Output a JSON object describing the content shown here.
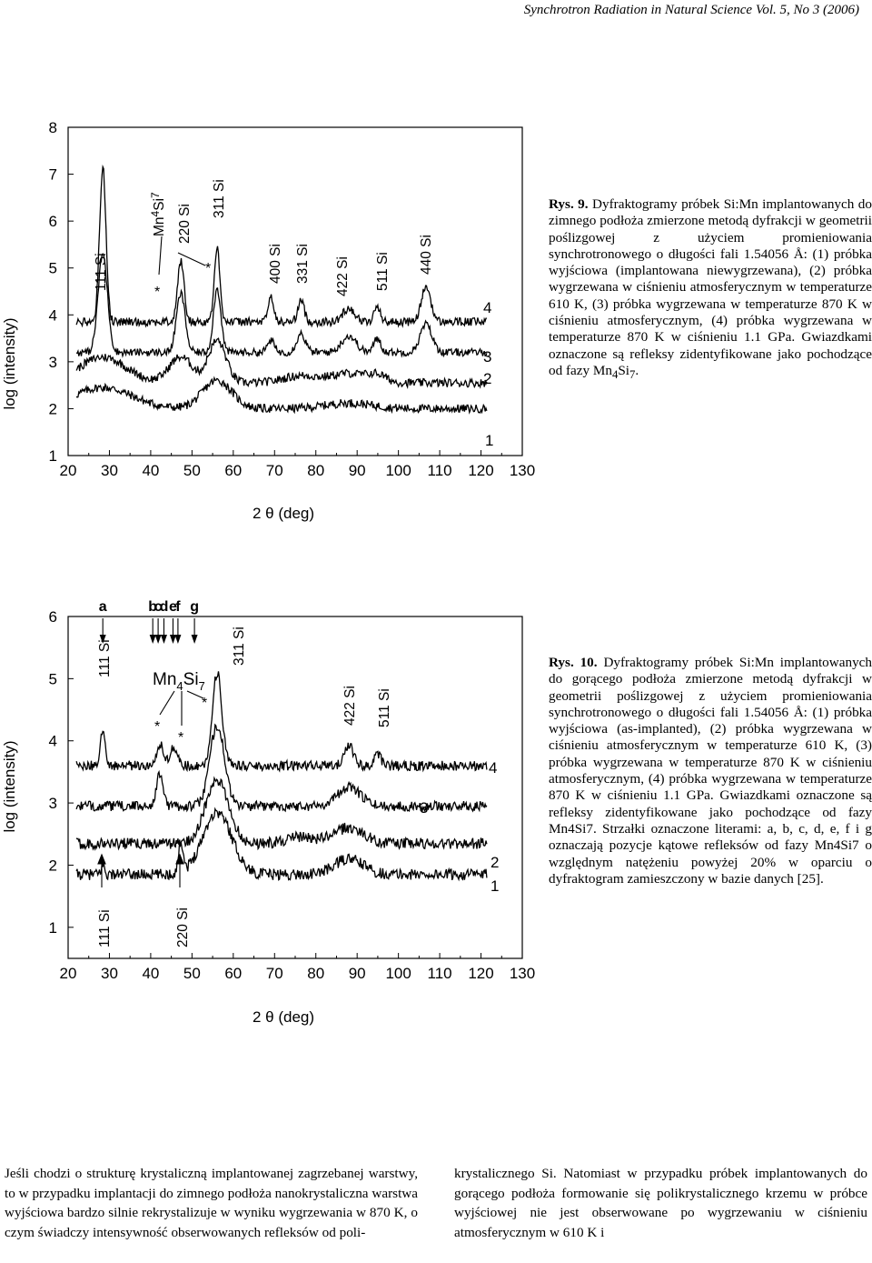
{
  "header": "Synchrotron Radiation in Natural Science Vol. 5, No 3 (2006)",
  "figure9": {
    "caption_label": "Rys. 9.",
    "caption_text": "Dyfraktogramy próbek Si:Mn implantowanych do zimnego podłoża zmierzone metodą dyfrakcji w geometrii poślizgowej z użyciem promieniowania synchrotronowego o długości fali 1.54056 Å: (1) próbka wyjściowa (implantowana niewygrzewana), (2) próbka wygrzewana w ciśnieniu atmosferycznym w temperaturze 610 K, (3) próbka wygrzewana w temperaturze 870 K w ciśnieniu atmosferycznym, (4) próbka wygrzewana w temperaturze 870 K w ciśnieniu 1.1 GPa. Gwiazdkami oznaczone są refleksy zidentyfikowane jako pochodzące od fazy Mn",
    "caption_formula": [
      "4",
      "Si",
      "7",
      "."
    ],
    "chart_data": {
      "type": "line",
      "xlabel": "2 θ (deg)",
      "ylabel": "log (intensity)",
      "xlim": [
        20,
        130
      ],
      "ylim": [
        1,
        8
      ],
      "x_ticks": [
        "20",
        "30",
        "40",
        "50",
        "60",
        "70",
        "80",
        "90",
        "100",
        "110",
        "120",
        "130"
      ],
      "y_ticks": [
        "1",
        "2",
        "3",
        "4",
        "5",
        "6",
        "7",
        "8"
      ],
      "series": [
        {
          "name": "1",
          "baseline": 2.0,
          "noise": 0.09,
          "peaks": [
            [
              28.4,
              0.45,
              10
            ],
            [
              56.1,
              0.6,
              5
            ],
            [
              88,
              0.12,
              8
            ]
          ]
        },
        {
          "name": "2",
          "baseline": 2.55,
          "noise": 0.09,
          "peaks": [
            [
              28.4,
              0.55,
              8
            ],
            [
              47.3,
              0.55,
              4
            ],
            [
              56.1,
              0.9,
              3
            ],
            [
              76.4,
              0.15,
              6
            ],
            [
              88,
              0.2,
              6
            ],
            [
              94.9,
              0.15,
              3
            ]
          ]
        },
        {
          "name": "3",
          "baseline": 3.2,
          "noise": 0.08,
          "peaks": [
            [
              28.4,
              2.1,
              1.6
            ],
            [
              47.3,
              1.25,
              1.5
            ],
            [
              56.1,
              1.35,
              1.3
            ],
            [
              69.1,
              0.25,
              1.2
            ],
            [
              76.4,
              0.4,
              1.5
            ],
            [
              88,
              0.35,
              2.5
            ],
            [
              94.9,
              0.3,
              1.2
            ],
            [
              106.7,
              0.6,
              2
            ]
          ]
        },
        {
          "name": "4",
          "baseline": 3.85,
          "noise": 0.09,
          "peaks": [
            [
              28.4,
              3.3,
              1.1
            ],
            [
              47.3,
              1.3,
              1.1
            ],
            [
              56.1,
              1.55,
              1
            ],
            [
              69.1,
              0.55,
              0.9
            ],
            [
              76.4,
              0.45,
              1.1
            ],
            [
              88,
              0.3,
              2
            ],
            [
              94.9,
              0.35,
              1
            ],
            [
              106.7,
              0.75,
              1.6
            ]
          ]
        }
      ],
      "series_labels": [
        "1",
        "2",
        "3",
        "4"
      ],
      "annotations": [
        "111 Si",
        "Mn",
        "4",
        "Si",
        "7",
        "220 Si",
        "311 Si",
        "400 Si",
        "331 Si",
        "422 Si",
        "511 Si",
        "440 Si",
        "*",
        "*"
      ]
    }
  },
  "figure10": {
    "caption_label": "Rys. 10.",
    "caption_text": "Dyfraktogramy próbek Si:Mn implantowanych do gorącego podłoża zmierzone metodą dyfrakcji w geometrii poślizgowej z użyciem promieniowania synchrotronowego o długości fali 1.54056 Å: (1) próbka wyjściowa (as-implanted), (2) próbka wygrzewana w ciśnieniu atmosferycznym w temperaturze 610 K, (3) próbka wygrzewana w temperaturze 870 K w ciśnieniu atmosferycznym, (4) próbka wygrzewana w temperaturze 870 K w ciśnieniu 1.1 GPa. Gwiazdkami oznaczone są refleksy zidentyfikowane jako pochodzące od fazy Mn4Si7. Strzałki oznaczone literami: a, b, c, d, e, f i g oznaczają pozycje kątowe refleksów od fazy Mn4Si7 o względnym natężeniu powyżej 20% w oparciu o dyfraktogram zamieszczony w bazie danych [25].",
    "chart_data": {
      "type": "line",
      "xlabel": "2 θ (deg)",
      "ylabel": "log (intensity)",
      "xlim": [
        20,
        130
      ],
      "ylim": [
        0.5,
        6
      ],
      "x_ticks": [
        "20",
        "30",
        "40",
        "50",
        "60",
        "70",
        "80",
        "90",
        "100",
        "110",
        "120",
        "130"
      ],
      "y_ticks": [
        "1",
        "2",
        "3",
        "4",
        "5",
        "6"
      ],
      "series": [
        {
          "name": "1",
          "baseline": 1.85,
          "noise": 0.09,
          "peaks": [
            [
              28.4,
              0.15,
              0.6
            ],
            [
              47.3,
              0.5,
              0.8
            ],
            [
              56.1,
              1.0,
              5
            ],
            [
              88,
              0.25,
              5
            ]
          ]
        },
        {
          "name": "2",
          "baseline": 2.35,
          "noise": 0.09,
          "peaks": [
            [
              56.1,
              1.0,
              4
            ],
            [
              76.4,
              0.1,
              5
            ],
            [
              88,
              0.25,
              5
            ]
          ]
        },
        {
          "name": "3",
          "baseline": 2.95,
          "noise": 0.08,
          "peaks": [
            [
              42.2,
              0.5,
              1.2
            ],
            [
              56.1,
              1.3,
              2.5
            ],
            [
              88,
              0.3,
              4
            ]
          ]
        },
        {
          "name": "4",
          "baseline": 3.6,
          "noise": 0.08,
          "peaks": [
            [
              28.4,
              0.55,
              0.9
            ],
            [
              42.2,
              0.35,
              1.2
            ],
            [
              45.6,
              0.3,
              1.2
            ],
            [
              56.1,
              1.5,
              1.6
            ],
            [
              88,
              0.35,
              1.5
            ],
            [
              94.9,
              0.2,
              1.2
            ]
          ]
        }
      ],
      "series_labels": [
        "1",
        "2",
        "3",
        "4"
      ],
      "arrow_letters": [
        "a",
        "b",
        "c",
        "d",
        "e",
        "f",
        "g"
      ],
      "arrow_positions_2theta": [
        28.4,
        40.5,
        41.8,
        43.2,
        45.4,
        46.6,
        50.6
      ],
      "annotations": [
        "111 Si",
        "Mn",
        "4",
        "Si",
        "7",
        "311 Si",
        "422 Si",
        "511 Si",
        "111 Si",
        "220 Si",
        "*",
        "*",
        "*"
      ]
    }
  },
  "body_left": "Jeśli chodzi o strukturę krystaliczną implantowanej zagrzebanej warstwy, to w przypadku implantacji do zimnego podłoża nanokrystaliczna warstwa wyjściowa bardzo silnie rekrystalizuje w wyniku wygrzewania w 870 K, o czym świadczy intensywność obserwowanych refleksów od poli-",
  "body_right": "krystalicznego Si. Natomiast w przypadku próbek implantowanych do gorącego podłoża formowanie się polikrystalicznego krzemu w próbce wyjściowej nie jest obserwowane po wygrzewaniu w ciśnieniu atmosferycznym w 610 K i"
}
